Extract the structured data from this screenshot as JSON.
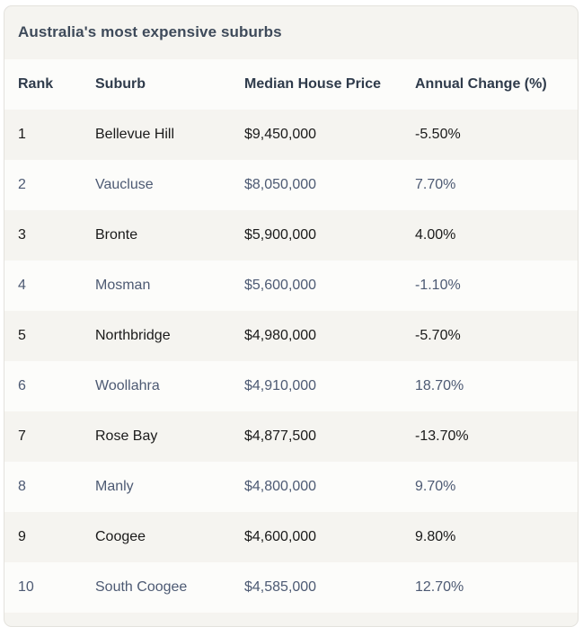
{
  "table": {
    "title": "Australia's most expensive suburbs",
    "headers": {
      "rank": "Rank",
      "suburb": "Suburb",
      "price": "Median House Price",
      "change": "Annual Change (%)"
    },
    "rows": [
      {
        "rank": "1",
        "suburb": "Bellevue Hill",
        "price": "$9,450,000",
        "change": "-5.50%"
      },
      {
        "rank": "2",
        "suburb": "Vaucluse",
        "price": "$8,050,000",
        "change": "7.70%"
      },
      {
        "rank": "3",
        "suburb": "Bronte",
        "price": "$5,900,000",
        "change": "4.00%"
      },
      {
        "rank": "4",
        "suburb": "Mosman",
        "price": "$5,600,000",
        "change": "-1.10%"
      },
      {
        "rank": "5",
        "suburb": "Northbridge",
        "price": "$4,980,000",
        "change": "-5.70%"
      },
      {
        "rank": "6",
        "suburb": "Woollahra",
        "price": "$4,910,000",
        "change": "18.70%"
      },
      {
        "rank": "7",
        "suburb": "Rose Bay",
        "price": "$4,877,500",
        "change": "-13.70%"
      },
      {
        "rank": "8",
        "suburb": "Manly",
        "price": "$4,800,000",
        "change": "9.70%"
      },
      {
        "rank": "9",
        "suburb": "Coogee",
        "price": "$4,600,000",
        "change": "9.80%"
      },
      {
        "rank": "10",
        "suburb": "South Coogee",
        "price": "$4,585,000",
        "change": "12.70%"
      }
    ]
  }
}
